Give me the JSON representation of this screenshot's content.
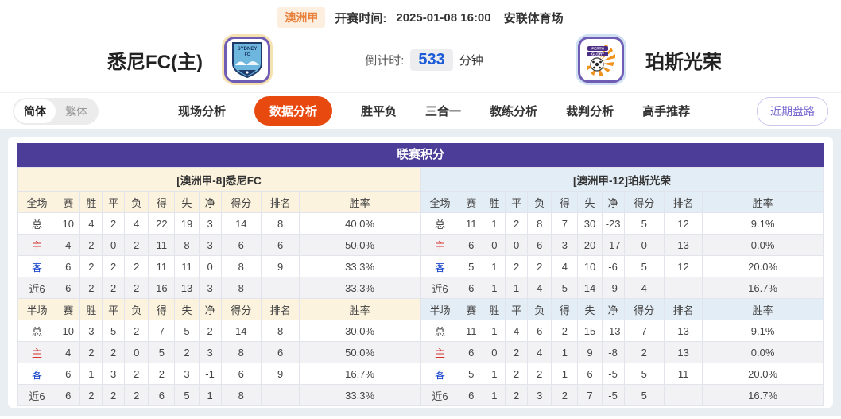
{
  "top_bar": {
    "league_badge": "澳洲甲",
    "kickoff_label": "开赛时间:",
    "kickoff_time": "2025-01-08 16:00",
    "venue": "安联体育场"
  },
  "match_header": {
    "home_team": "悉尼FC(主)",
    "away_team": "珀斯光荣",
    "home_badge_name": "sydney-fc-crest",
    "away_badge_name": "perth-glory-crest",
    "countdown_label": "倒计时:",
    "countdown_value": "533",
    "countdown_unit": "分钟"
  },
  "toolbar": {
    "lang_simplified": "简体",
    "lang_traditional": "繁体",
    "tabs": [
      {
        "id": "live-analysis",
        "label": "现场分析",
        "active": false
      },
      {
        "id": "data-analysis",
        "label": "数据分析",
        "active": true
      },
      {
        "id": "win-draw-loss",
        "label": "胜平负",
        "active": false
      },
      {
        "id": "three-in-one",
        "label": "三合一",
        "active": false
      },
      {
        "id": "coach-analysis",
        "label": "教练分析",
        "active": false
      },
      {
        "id": "referee-analysis",
        "label": "裁判分析",
        "active": false
      },
      {
        "id": "expert-picks",
        "label": "高手推荐",
        "active": false
      }
    ],
    "recent_odds_button": "近期盘路"
  },
  "league_table": {
    "title": "联赛积分",
    "columns_full": [
      "全场",
      "赛",
      "胜",
      "平",
      "负",
      "得",
      "失",
      "净",
      "得分",
      "排名",
      "胜率"
    ],
    "columns_half": [
      "半场",
      "赛",
      "胜",
      "平",
      "负",
      "得",
      "失",
      "净",
      "得分",
      "排名",
      "胜率"
    ],
    "left": {
      "team_header": "[澳洲甲-8]悉尼FC",
      "full_rows": [
        {
          "label": "总",
          "type": "total",
          "values": [
            "10",
            "4",
            "2",
            "4",
            "22",
            "19",
            "3",
            "14",
            "8",
            "40.0%"
          ]
        },
        {
          "label": "主",
          "type": "home",
          "values": [
            "4",
            "2",
            "0",
            "2",
            "11",
            "8",
            "3",
            "6",
            "6",
            "50.0%"
          ]
        },
        {
          "label": "客",
          "type": "away",
          "values": [
            "6",
            "2",
            "2",
            "2",
            "11",
            "11",
            "0",
            "8",
            "9",
            "33.3%"
          ]
        },
        {
          "label": "近6",
          "type": "recent",
          "values": [
            "6",
            "2",
            "2",
            "2",
            "16",
            "13",
            "3",
            "8",
            "",
            "33.3%"
          ]
        }
      ],
      "half_rows": [
        {
          "label": "总",
          "type": "total",
          "values": [
            "10",
            "3",
            "5",
            "2",
            "7",
            "5",
            "2",
            "14",
            "8",
            "30.0%"
          ]
        },
        {
          "label": "主",
          "type": "home",
          "values": [
            "4",
            "2",
            "2",
            "0",
            "5",
            "2",
            "3",
            "8",
            "6",
            "50.0%"
          ]
        },
        {
          "label": "客",
          "type": "away",
          "values": [
            "6",
            "1",
            "3",
            "2",
            "2",
            "3",
            "-1",
            "6",
            "9",
            "16.7%"
          ]
        },
        {
          "label": "近6",
          "type": "recent",
          "values": [
            "6",
            "2",
            "2",
            "2",
            "6",
            "5",
            "1",
            "8",
            "",
            "33.3%"
          ]
        }
      ]
    },
    "right": {
      "team_header": "[澳洲甲-12]珀斯光荣",
      "full_rows": [
        {
          "label": "总",
          "type": "total",
          "values": [
            "11",
            "1",
            "2",
            "8",
            "7",
            "30",
            "-23",
            "5",
            "12",
            "9.1%"
          ]
        },
        {
          "label": "主",
          "type": "home",
          "values": [
            "6",
            "0",
            "0",
            "6",
            "3",
            "20",
            "-17",
            "0",
            "13",
            "0.0%"
          ]
        },
        {
          "label": "客",
          "type": "away",
          "values": [
            "5",
            "1",
            "2",
            "2",
            "4",
            "10",
            "-6",
            "5",
            "12",
            "20.0%"
          ]
        },
        {
          "label": "近6",
          "type": "recent",
          "values": [
            "6",
            "1",
            "1",
            "4",
            "5",
            "14",
            "-9",
            "4",
            "",
            "16.7%"
          ]
        }
      ],
      "half_rows": [
        {
          "label": "总",
          "type": "total",
          "values": [
            "11",
            "1",
            "4",
            "6",
            "2",
            "15",
            "-13",
            "7",
            "13",
            "9.1%"
          ]
        },
        {
          "label": "主",
          "type": "home",
          "values": [
            "6",
            "0",
            "2",
            "4",
            "1",
            "9",
            "-8",
            "2",
            "13",
            "0.0%"
          ]
        },
        {
          "label": "客",
          "type": "away",
          "values": [
            "5",
            "1",
            "2",
            "2",
            "1",
            "6",
            "-5",
            "5",
            "11",
            "20.0%"
          ]
        },
        {
          "label": "近6",
          "type": "recent",
          "values": [
            "6",
            "1",
            "2",
            "3",
            "2",
            "7",
            "-5",
            "5",
            "",
            "16.7%"
          ]
        }
      ]
    }
  },
  "colors": {
    "header_purple": "#4c3d99",
    "active_tab_orange": "#e8490f",
    "home_row_red": "#d5332e",
    "away_row_blue": "#1c48cc",
    "left_header_cream": "#fcf3de",
    "right_header_blue": "#e3edf5",
    "countdown_blue": "#1d5bd6",
    "league_badge_orange": "#e8813c",
    "recent_btn_purple": "#7b6ad0"
  }
}
